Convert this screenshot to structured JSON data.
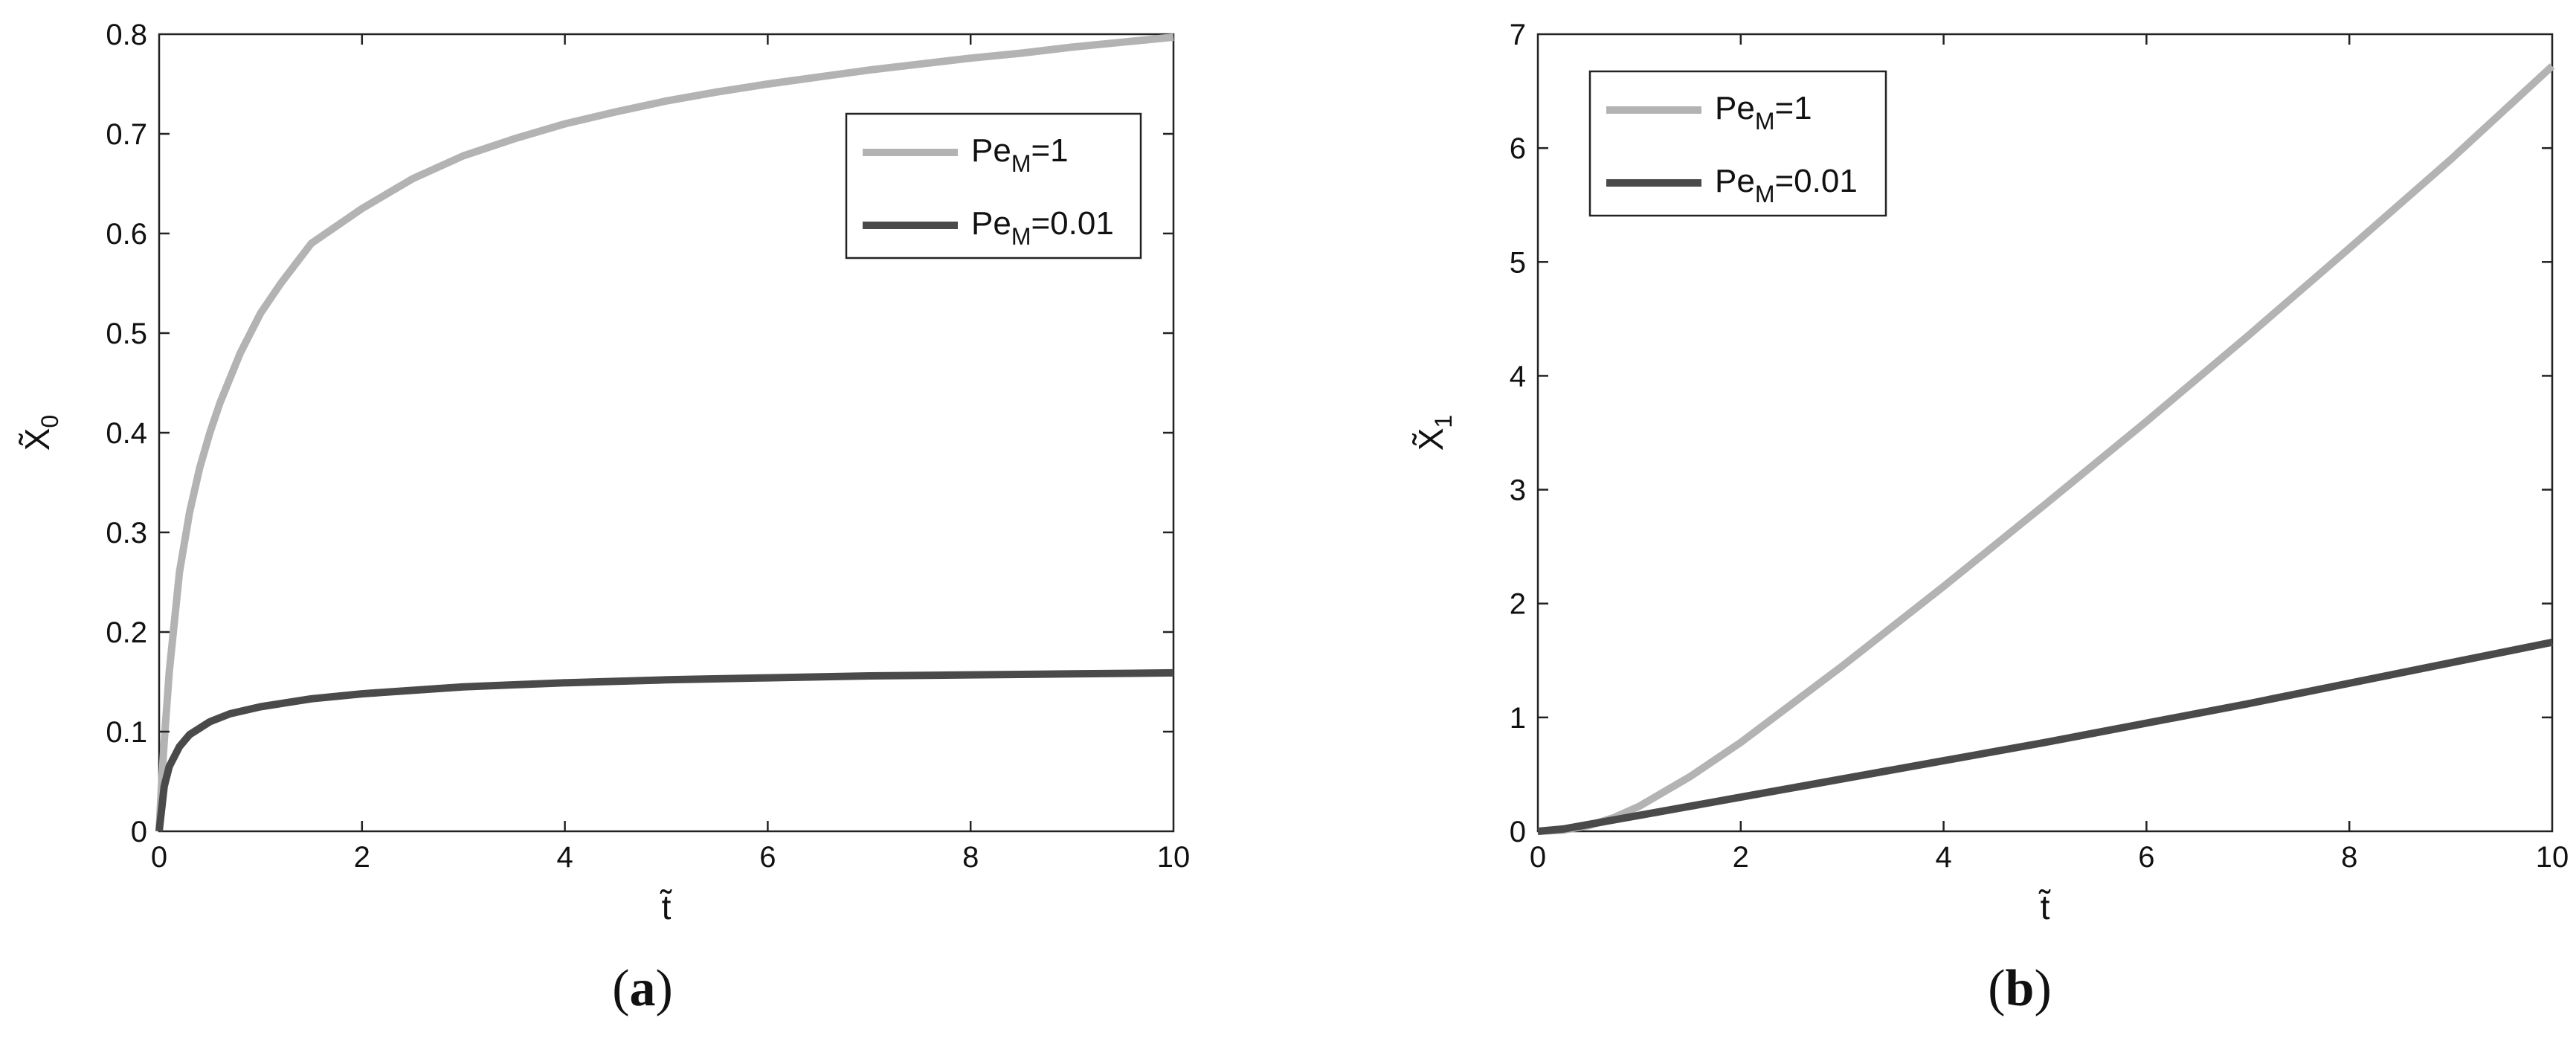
{
  "colors": {
    "light": "#b3b3b3",
    "dark": "#4a4a4a"
  },
  "chart_data": [
    {
      "type": "line",
      "panel_label": "a",
      "xlabel": "t̃",
      "ylabel": "X̃",
      "ylabel_sub": "0",
      "xlim": [
        0,
        10
      ],
      "ylim": [
        0,
        0.8
      ],
      "xticks": [
        "0",
        "2",
        "4",
        "6",
        "8",
        "10"
      ],
      "yticks": [
        "0",
        "0.1",
        "0.2",
        "0.3",
        "0.4",
        "0.5",
        "0.6",
        "0.7",
        "0.8"
      ],
      "legend_position": "top-right",
      "series": [
        {
          "name": "Pe_M=1",
          "legend_main": "Pe",
          "legend_sub": "M",
          "legend_tail": "=1",
          "color": "#b3b3b3",
          "x": [
            0,
            0.02,
            0.05,
            0.1,
            0.2,
            0.3,
            0.4,
            0.5,
            0.6,
            0.8,
            1.0,
            1.2,
            1.5,
            2.0,
            2.5,
            3.0,
            3.5,
            4.0,
            4.5,
            5.0,
            5.5,
            6.0,
            6.5,
            7.0,
            7.5,
            8.0,
            8.5,
            9.0,
            9.5,
            10.0
          ],
          "y": [
            0,
            0.04,
            0.09,
            0.16,
            0.26,
            0.32,
            0.365,
            0.4,
            0.43,
            0.48,
            0.52,
            0.55,
            0.59,
            0.625,
            0.655,
            0.678,
            0.695,
            0.71,
            0.722,
            0.733,
            0.742,
            0.75,
            0.757,
            0.764,
            0.77,
            0.776,
            0.781,
            0.787,
            0.792,
            0.797
          ]
        },
        {
          "name": "Pe_M=0.01",
          "legend_main": "Pe",
          "legend_sub": "M",
          "legend_tail": "=0.01",
          "color": "#4a4a4a",
          "x": [
            0,
            0.05,
            0.1,
            0.2,
            0.3,
            0.5,
            0.7,
            1.0,
            1.5,
            2.0,
            3.0,
            4.0,
            5.0,
            6.0,
            7.0,
            8.0,
            9.0,
            10.0
          ],
          "y": [
            0,
            0.045,
            0.065,
            0.085,
            0.097,
            0.11,
            0.118,
            0.125,
            0.133,
            0.138,
            0.145,
            0.149,
            0.152,
            0.154,
            0.156,
            0.157,
            0.158,
            0.159
          ]
        }
      ]
    },
    {
      "type": "line",
      "panel_label": "b",
      "xlabel": "t̃",
      "ylabel": "X̃",
      "ylabel_sub": "1",
      "xlim": [
        0,
        10
      ],
      "ylim": [
        0,
        7
      ],
      "xticks": [
        "0",
        "2",
        "4",
        "6",
        "8",
        "10"
      ],
      "yticks": [
        "0",
        "1",
        "2",
        "3",
        "4",
        "5",
        "6",
        "7"
      ],
      "legend_position": "top-left",
      "series": [
        {
          "name": "Pe_M=1",
          "legend_main": "Pe",
          "legend_sub": "M",
          "legend_tail": "=1",
          "color": "#b3b3b3",
          "x": [
            0,
            0.25,
            0.5,
            0.75,
            1.0,
            1.5,
            2.0,
            3.0,
            4.0,
            5.0,
            6.0,
            7.0,
            8.0,
            9.0,
            10.0
          ],
          "y": [
            0,
            0.01,
            0.05,
            0.12,
            0.22,
            0.48,
            0.78,
            1.45,
            2.15,
            2.87,
            3.6,
            4.35,
            5.12,
            5.9,
            6.72
          ]
        },
        {
          "name": "Pe_M=0.01",
          "legend_main": "Pe",
          "legend_sub": "M",
          "legend_tail": "=0.01",
          "color": "#4a4a4a",
          "x": [
            0,
            0.25,
            0.5,
            1.0,
            2.0,
            3.0,
            4.0,
            5.0,
            6.0,
            7.0,
            8.0,
            9.0,
            10.0
          ],
          "y": [
            0,
            0.02,
            0.06,
            0.14,
            0.3,
            0.46,
            0.62,
            0.78,
            0.95,
            1.12,
            1.3,
            1.48,
            1.66
          ]
        }
      ]
    }
  ]
}
